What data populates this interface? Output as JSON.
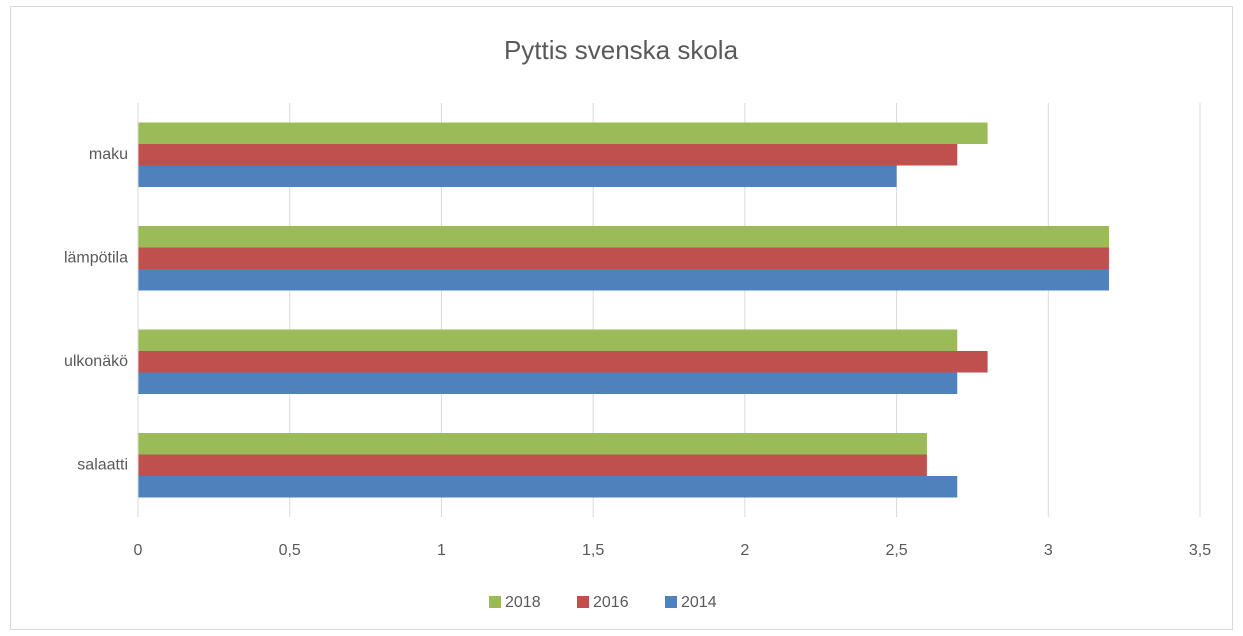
{
  "chart_data": {
    "type": "hbar",
    "title": "Pyttis svenska skola",
    "categories": [
      "maku",
      "lämpötila",
      "ulkonäkö",
      "salaatti"
    ],
    "series": [
      {
        "name": "2018",
        "color": "#9bbb59",
        "values": [
          2.8,
          3.2,
          2.7,
          2.6
        ]
      },
      {
        "name": "2016",
        "color": "#c0504d",
        "values": [
          2.7,
          3.2,
          2.8,
          2.6
        ]
      },
      {
        "name": "2014",
        "color": "#4f81bd",
        "values": [
          2.5,
          3.2,
          2.7,
          2.7
        ]
      }
    ],
    "xlim": [
      0,
      3.5
    ],
    "xticks": [
      0,
      {
        "value": 0.5,
        "label": "0,5"
      },
      1,
      {
        "value": 1.5,
        "label": "1,5"
      },
      2,
      {
        "value": 2.5,
        "label": "2,5"
      },
      3,
      {
        "value": 3.5,
        "label": "3,5"
      }
    ],
    "grid": true,
    "legend": "bottom"
  }
}
